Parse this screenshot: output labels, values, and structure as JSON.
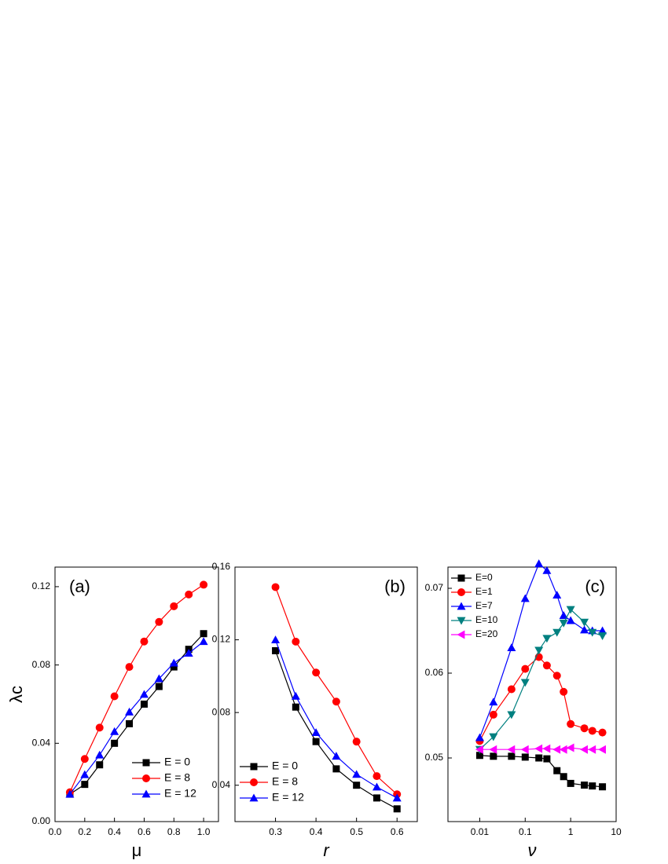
{
  "chart_data": [
    {
      "type": "line",
      "title": "(a)",
      "xlabel": "μ",
      "ylabel": "λc",
      "x": [
        0.1,
        0.2,
        0.3,
        0.4,
        0.5,
        0.6,
        0.7,
        0.8,
        0.9,
        1.0
      ],
      "xlim": [
        0,
        1.1
      ],
      "xticks": [
        {
          "value": 0,
          "label": "0.0"
        },
        0.2,
        0.4,
        0.6,
        0.8,
        {
          "value": 1,
          "label": "1.0"
        }
      ],
      "ylim": [
        0,
        0.13
      ],
      "yticks": [
        {
          "value": 0,
          "label": "0.00"
        },
        0.04,
        0.08,
        0.12
      ],
      "legend": "lower-right",
      "series": [
        {
          "name": "E = 0",
          "color": "#000000",
          "marker": "square",
          "values": [
            0.014,
            0.019,
            0.029,
            0.04,
            0.05,
            0.06,
            0.069,
            0.079,
            0.088,
            0.096
          ]
        },
        {
          "name": "E = 8",
          "color": "#ff0000",
          "marker": "circle",
          "values": [
            0.015,
            0.032,
            0.048,
            0.064,
            0.079,
            0.092,
            0.102,
            0.11,
            0.116,
            0.121
          ]
        },
        {
          "name": "E = 12",
          "color": "#0000ff",
          "marker": "triangle",
          "values": [
            0.014,
            0.024,
            0.034,
            0.046,
            0.056,
            0.065,
            0.073,
            0.081,
            0.086,
            0.092
          ]
        }
      ]
    },
    {
      "type": "line",
      "title": "(b)",
      "xlabel": "r",
      "x": [
        0.3,
        0.35,
        0.4,
        0.45,
        0.5,
        0.55,
        0.6
      ],
      "xlim": [
        0.2,
        0.65
      ],
      "xticks": [
        0.3,
        0.4,
        0.5,
        0.6
      ],
      "ylim": [
        0.02,
        0.16
      ],
      "yticks": [
        0.04,
        0.08,
        0.12,
        0.16
      ],
      "legend": "lower-left",
      "series": [
        {
          "name": "E = 0",
          "color": "#000000",
          "marker": "square",
          "values": [
            0.114,
            0.083,
            0.064,
            0.049,
            0.04,
            0.033,
            0.027
          ]
        },
        {
          "name": "E = 8",
          "color": "#ff0000",
          "marker": "circle",
          "values": [
            0.149,
            0.119,
            0.102,
            0.086,
            0.064,
            0.045,
            0.035
          ]
        },
        {
          "name": "E = 12",
          "color": "#0000ff",
          "marker": "triangle",
          "values": [
            0.12,
            0.089,
            0.069,
            0.056,
            0.046,
            0.039,
            0.033
          ]
        }
      ]
    },
    {
      "type": "line",
      "title": "(c)",
      "xlabel": "ν",
      "xscale": "log",
      "x": [
        0.01,
        0.02,
        0.05,
        0.1,
        0.2,
        0.3,
        0.5,
        0.7,
        1,
        2,
        3,
        5
      ],
      "xlim": [
        0.002,
        10
      ],
      "xticks": [
        0.01,
        0.1,
        1,
        10
      ],
      "ylim": [
        0.0425,
        0.0725
      ],
      "yticks": [
        0.05,
        0.06,
        0.07
      ],
      "legend": "upper-left",
      "series": [
        {
          "name": "E=0",
          "color": "#000000",
          "marker": "square",
          "values": [
            0.0503,
            0.0502,
            0.0502,
            0.0501,
            0.05,
            0.0499,
            0.0485,
            0.0478,
            0.047,
            0.0468,
            0.0467,
            0.0466
          ]
        },
        {
          "name": "E=1",
          "color": "#ff0000",
          "marker": "circle",
          "values": [
            0.052,
            0.0551,
            0.0581,
            0.0605,
            0.0619,
            0.0609,
            0.0597,
            0.0578,
            0.054,
            0.0535,
            0.0532,
            0.053
          ]
        },
        {
          "name": "E=7",
          "color": "#0000ff",
          "marker": "triangle",
          "values": [
            0.0524,
            0.0566,
            0.063,
            0.0688,
            0.0729,
            0.0721,
            0.0692,
            0.0668,
            0.0662,
            0.0651,
            0.065,
            0.065
          ]
        },
        {
          "name": "E=10",
          "color": "#008080",
          "marker": "triangle-down",
          "values": [
            0.051,
            0.0525,
            0.0551,
            0.0589,
            0.0627,
            0.0641,
            0.0648,
            0.0659,
            0.0675,
            0.066,
            0.0648,
            0.0644
          ]
        },
        {
          "name": "E=20",
          "color": "#ff00ff",
          "marker": "triangle-left",
          "values": [
            0.051,
            0.051,
            0.051,
            0.051,
            0.0511,
            0.0511,
            0.051,
            0.051,
            0.0512,
            0.051,
            0.051,
            0.051
          ]
        }
      ]
    }
  ]
}
